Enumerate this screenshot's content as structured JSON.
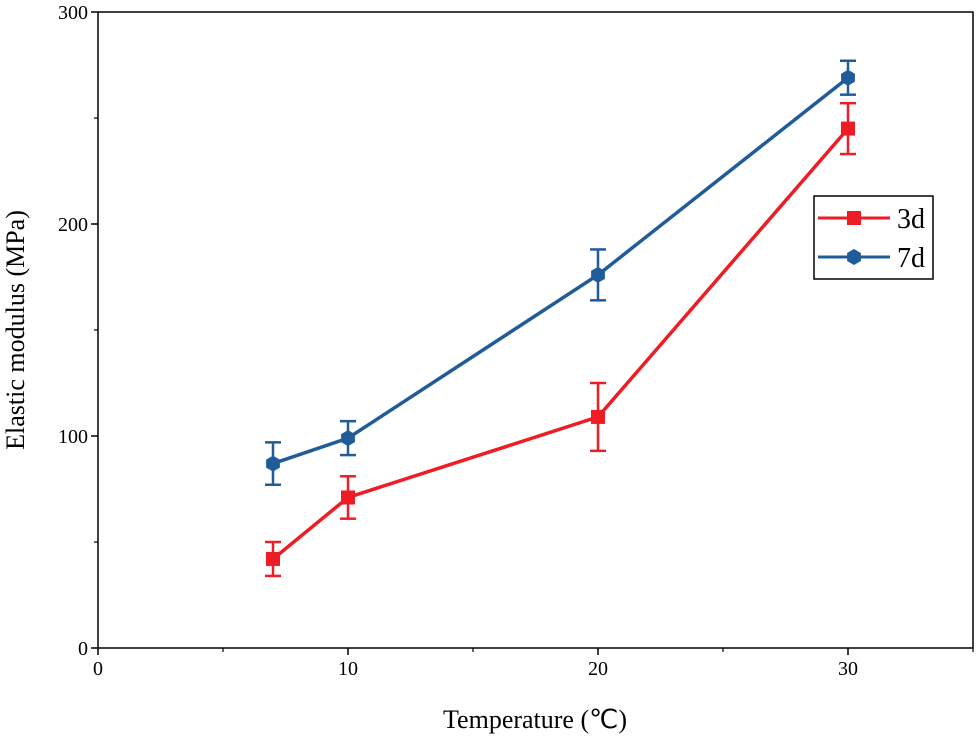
{
  "chart_data": {
    "type": "line",
    "title": "",
    "xlabel": "Temperature (℃)",
    "ylabel": "Elastic modulus (MPa)",
    "xlim": [
      0,
      35
    ],
    "ylim": [
      0,
      300
    ],
    "xticks": [
      0,
      10,
      20,
      30
    ],
    "yticks": [
      0,
      100,
      200,
      300
    ],
    "xtick_labels": [
      "0",
      "10",
      "20",
      "30"
    ],
    "ytick_labels": [
      "0",
      "100",
      "200",
      "300"
    ],
    "grid": false,
    "legend_position": "right",
    "series": [
      {
        "name": "3d",
        "color": "#ee1c25",
        "marker": "square",
        "x": [
          7,
          10,
          20,
          30
        ],
        "y": [
          42,
          71,
          109,
          245
        ],
        "err": [
          8,
          10,
          16,
          12
        ]
      },
      {
        "name": "7d",
        "color": "#1f5c99",
        "marker": "hexagon",
        "x": [
          7,
          10,
          20,
          30
        ],
        "y": [
          87,
          99,
          176,
          269
        ],
        "err": [
          10,
          8,
          12,
          8
        ]
      }
    ]
  }
}
